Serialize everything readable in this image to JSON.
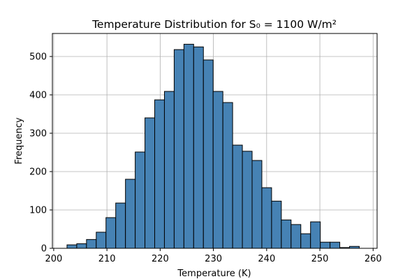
{
  "chart_data": {
    "type": "bar",
    "title": "Temperature Distribution for S₀ = 1100 W/m²",
    "xlabel": "Temperature (K)",
    "ylabel": "Frequency",
    "xlim": [
      199.75,
      260.75
    ],
    "ylim": [
      0,
      560
    ],
    "xticks": [
      200,
      210,
      220,
      230,
      240,
      250,
      260
    ],
    "yticks": [
      0,
      100,
      200,
      300,
      400,
      500
    ],
    "grid": true,
    "bar_color": "#4682b4",
    "edge_color": "#000000",
    "bin_start": 202.5,
    "bin_width": 1.83,
    "values": [
      9,
      12,
      23,
      42,
      80,
      118,
      180,
      251,
      340,
      387,
      409,
      518,
      532,
      525,
      491,
      409,
      380,
      269,
      253,
      229,
      158,
      123,
      74,
      62,
      38,
      69,
      16,
      16,
      2,
      5
    ]
  }
}
